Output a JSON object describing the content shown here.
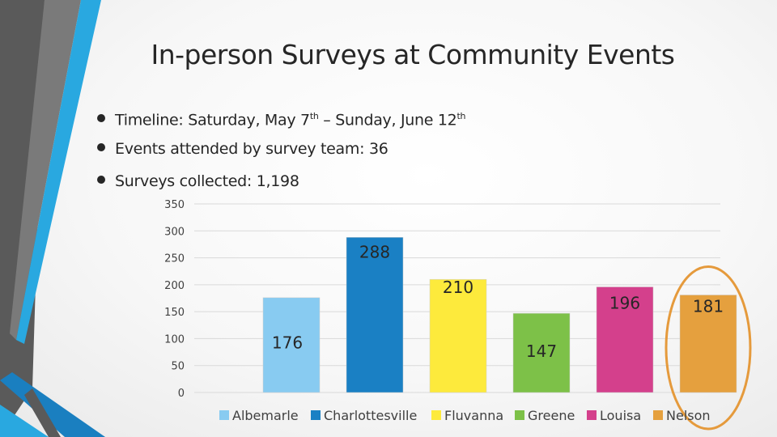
{
  "slide": {
    "title": "In-person Surveys at Community Events",
    "bullets": [
      {
        "text_a": "Timeline: Saturday, May 7",
        "sup_a": "th",
        "text_b": " – Sunday, June 12",
        "sup_b": "th"
      },
      {
        "text_a": "Events attended by survey team: 36",
        "sup_a": "",
        "text_b": "",
        "sup_b": ""
      },
      {
        "text_a": "Surveys collected: 1,198",
        "sup_a": "",
        "text_b": "",
        "sup_b": ""
      }
    ]
  },
  "colors": {
    "deco_dark": "#595959",
    "deco_light_blue": "#29a8e0",
    "deco_blue": "#1a7fc0",
    "highlight_ring": "#e59a3c"
  },
  "chart_data": {
    "type": "bar",
    "categories": [
      "Albemarle",
      "Charlottesville",
      "Fluvanna",
      "Greene",
      "Louisa",
      "Nelson"
    ],
    "values": [
      176,
      288,
      210,
      147,
      196,
      181
    ],
    "colors": [
      "#88cbf1",
      "#1a80c4",
      "#fdea3c",
      "#7dc148",
      "#d4408c",
      "#e5a03e"
    ],
    "ylim": [
      0,
      350
    ],
    "yticks": [
      0,
      50,
      100,
      150,
      200,
      250,
      300,
      350
    ],
    "grid": true,
    "legend_position": "bottom",
    "highlighted_category": "Nelson",
    "title": "",
    "xlabel": "",
    "ylabel": ""
  }
}
